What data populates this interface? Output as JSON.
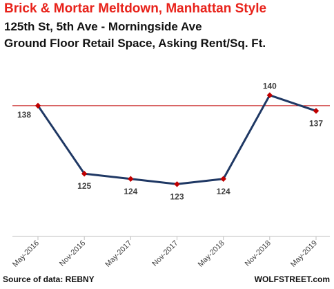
{
  "header": {
    "title": "Brick & Mortar Meltdown, Manhattan Style",
    "subtitle_1": "125th St, 5th Ave - Morningside Ave",
    "subtitle_2": "Ground Floor Retail Space, Asking Rent/Sq. Ft."
  },
  "footer": {
    "source": "Source of data: REBNY",
    "brand": "WOLFSTREET.com"
  },
  "colors": {
    "title": "#e8221a",
    "line": "#1f3864",
    "marker": "#c00000",
    "reference_line": "#c00000"
  },
  "chart_data": {
    "type": "line",
    "categories": [
      "May-2016",
      "Nov-2016",
      "May-2017",
      "Nov-2017",
      "May-2018",
      "Nov-2018",
      "May-2019"
    ],
    "values": [
      138,
      125,
      124,
      123,
      124,
      140,
      137
    ],
    "data_labels": [
      "138",
      "125",
      "124",
      "123",
      "124",
      "140",
      "137"
    ],
    "reference_line": 138,
    "ylim": [
      113,
      143
    ],
    "xlabel": "",
    "ylabel": "",
    "grid": false,
    "legend": "none"
  }
}
